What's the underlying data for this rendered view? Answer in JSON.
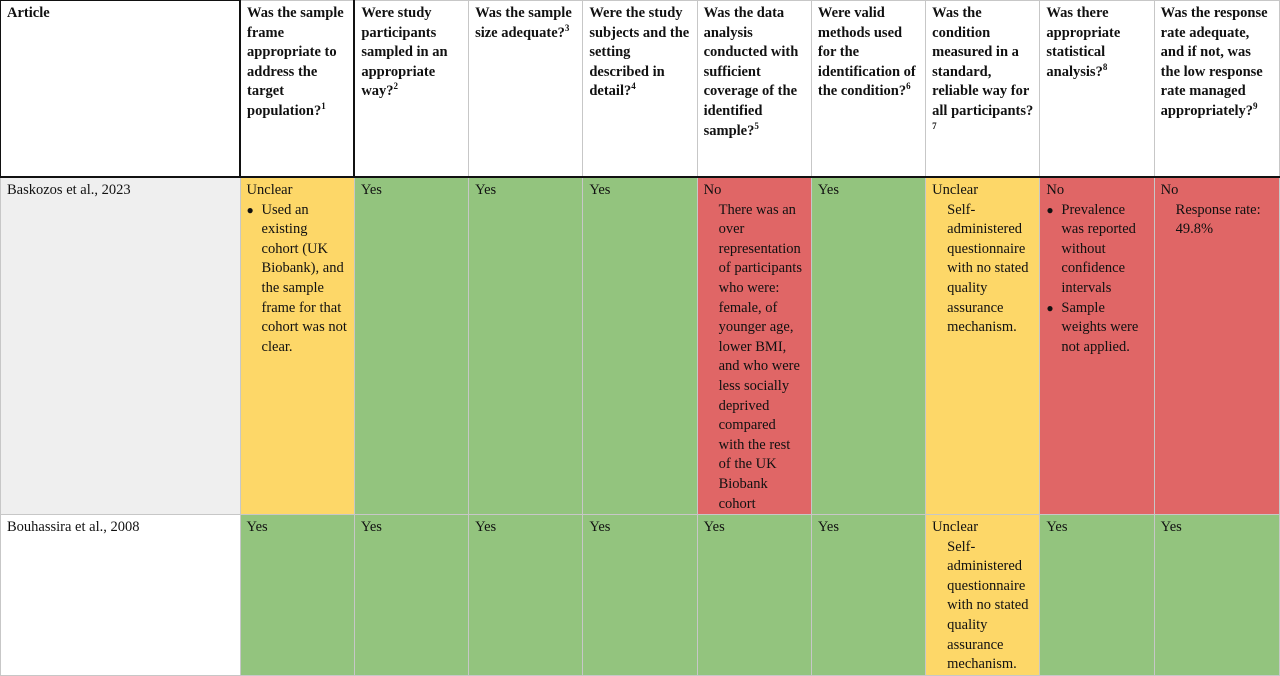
{
  "headers": {
    "article": "Article",
    "q1": "Was the sample frame appropriate to address the target population?",
    "q1_sup": "1",
    "q2": "Were study participants sampled in an appropriate way?",
    "q2_sup": "2",
    "q3": "Was the sample size adequate?",
    "q3_sup": "3",
    "q4": "Were the study subjects and the setting described in detail?",
    "q4_sup": "4",
    "q5": "Was the data analysis conducted with sufficient coverage of the identified sample?",
    "q5_sup": "5",
    "q6": "Were valid methods used for the identification of the condition?",
    "q6_sup": "6",
    "q7": "Was the condition measured in a standard, reliable way for all participants?",
    "q7_sup": "7",
    "q8": "Was there appropriate statistical analysis?",
    "q8_sup": "8",
    "q9": "Was the response rate adequate, and if not, was the low response rate managed appropriately?",
    "q9_sup": "9"
  },
  "rows": [
    {
      "article": "Baskozos et al., 2023",
      "q1": {
        "rating": "Unclear",
        "bullets": [
          "Used an existing cohort (UK Biobank), and the sample frame for that cohort was not clear."
        ]
      },
      "q2": {
        "rating": "Yes"
      },
      "q3": {
        "rating": "Yes"
      },
      "q4": {
        "rating": "Yes"
      },
      "q5": {
        "rating": "No",
        "note": "There was an over representation of participants who were: female, of younger age, lower BMI, and who were less socially deprived compared with the rest of the UK Biobank cohort"
      },
      "q6": {
        "rating": "Yes"
      },
      "q7": {
        "rating": "Unclear",
        "note": "Self-administered questionnaire with no stated quality assurance mechanism."
      },
      "q8": {
        "rating": "No",
        "bullets": [
          "Prevalence was reported without confidence intervals",
          "Sample weights were not applied."
        ]
      },
      "q9": {
        "rating": "No",
        "note": "Response rate: 49.8%"
      }
    },
    {
      "article": "Bouhassira et al., 2008",
      "q1": {
        "rating": "Yes"
      },
      "q2": {
        "rating": "Yes"
      },
      "q3": {
        "rating": "Yes"
      },
      "q4": {
        "rating": "Yes"
      },
      "q5": {
        "rating": "Yes"
      },
      "q6": {
        "rating": "Yes"
      },
      "q7": {
        "rating": "Unclear",
        "note": "Self-administered questionnaire with no stated quality assurance mechanism."
      },
      "q8": {
        "rating": "Yes"
      },
      "q9": {
        "rating": "Yes"
      }
    }
  ],
  "colors": {
    "yes": "#93c47e",
    "unclear": "#fdd768",
    "no": "#e06666",
    "article_shade": "#efefef"
  }
}
